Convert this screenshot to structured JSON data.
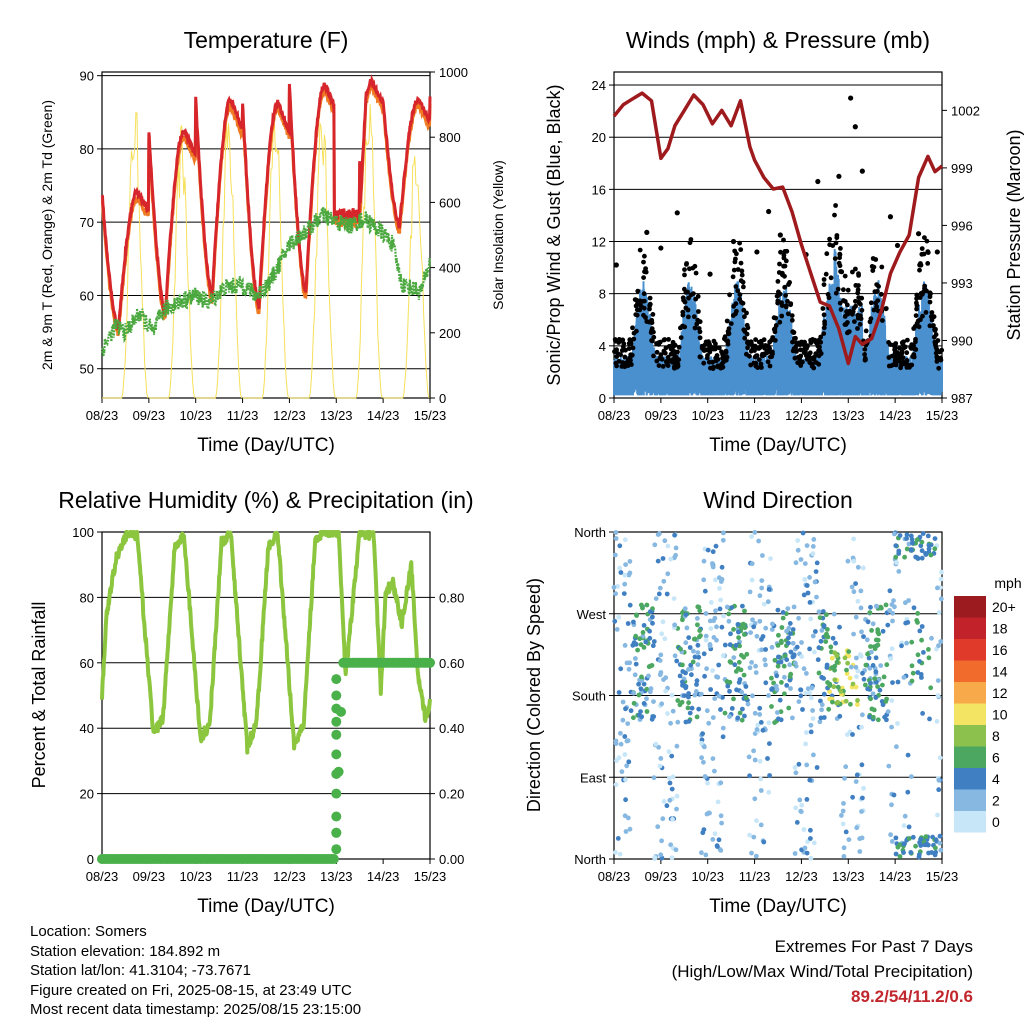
{
  "x_ticks": [
    "08/23",
    "09/23",
    "10/23",
    "11/23",
    "12/23",
    "13/23",
    "14/23",
    "15/23"
  ],
  "chart_data": [
    {
      "type": "line",
      "title": "Temperature (F)",
      "xlabel": "Time (Day/UTC)",
      "ylabel": "2m & 9m T (Red, Orange) & 2m Td (Green)",
      "y2label": "Solar Insolation (Yellow)",
      "ylim": [
        46,
        90.5
      ],
      "y_ticks": [
        50,
        60,
        70,
        80,
        90
      ],
      "y2lim": [
        0,
        1000
      ],
      "y2_ticks": [
        0,
        200,
        400,
        600,
        800,
        1000
      ],
      "grid": true,
      "days": [
        0,
        1,
        2,
        3,
        4,
        5,
        6,
        7
      ],
      "daily_high_temp": [
        74,
        82.5,
        86.8,
        86.3,
        88.8,
        89.2,
        86.8,
        87
      ],
      "daily_low_temp": [
        55.5,
        57.5,
        60,
        58.5,
        60.5,
        65.5,
        69.5,
        66.5
      ],
      "dewpoint_series": {
        "x": [
          0,
          0.3,
          0.5,
          0.8,
          1.1,
          1.3,
          1.6,
          2.0,
          2.3,
          2.6,
          3.0,
          3.3,
          3.6,
          4.0,
          4.4,
          4.7,
          5.0,
          5.3,
          5.6,
          6.0,
          6.2,
          6.4,
          6.8,
          7.0
        ],
        "values": [
          52.5,
          56,
          55,
          57.5,
          55,
          58,
          59,
          60,
          59,
          61,
          61.5,
          60,
          62,
          67,
          69,
          71,
          70,
          69.5,
          70.5,
          68.5,
          67,
          61.5,
          60.5,
          64.5
        ]
      },
      "daily_peak_insolation": [
        940,
        860,
        930,
        940,
        920,
        960,
        850,
        960
      ]
    },
    {
      "type": "scatter",
      "title": "Winds (mph) & Pressure (mb)",
      "xlabel": "Time (Day/UTC)",
      "ylabel": "Sonic/Prop Wind & Gust (Blue, Black)",
      "y2label": "Station Pressure (Maroon)",
      "ylim": [
        0,
        25
      ],
      "y_ticks": [
        0,
        4,
        8,
        12,
        16,
        20,
        24
      ],
      "y2lim": [
        987,
        1004
      ],
      "y2_ticks": [
        987,
        990,
        993,
        996,
        999,
        1002
      ],
      "grid": true,
      "gust_events": [
        {
          "x": 0.05,
          "y": 10.2
        },
        {
          "x": 0.7,
          "y": 12.7
        },
        {
          "x": 1.0,
          "y": 11.5
        },
        {
          "x": 1.35,
          "y": 14.2
        },
        {
          "x": 2.05,
          "y": 9.5
        },
        {
          "x": 2.55,
          "y": 12.0
        },
        {
          "x": 3.05,
          "y": 11.2
        },
        {
          "x": 3.3,
          "y": 14.3
        },
        {
          "x": 3.55,
          "y": 12.5
        },
        {
          "x": 4.1,
          "y": 11.0
        },
        {
          "x": 4.35,
          "y": 16.6
        },
        {
          "x": 4.8,
          "y": 17.0
        },
        {
          "x": 5.05,
          "y": 23.0
        },
        {
          "x": 5.15,
          "y": 20.8
        },
        {
          "x": 5.3,
          "y": 17.4
        },
        {
          "x": 5.9,
          "y": 13.9
        },
        {
          "x": 6.05,
          "y": 11.7
        },
        {
          "x": 6.5,
          "y": 12.6
        },
        {
          "x": 6.9,
          "y": 11.2
        },
        {
          "x": 6.75,
          "y": 8.0
        }
      ],
      "pressure_series": {
        "x": [
          0,
          0.2,
          0.4,
          0.6,
          0.8,
          1.0,
          1.15,
          1.3,
          1.5,
          1.7,
          1.9,
          2.1,
          2.3,
          2.5,
          2.7,
          2.9,
          3.0,
          3.2,
          3.4,
          3.6,
          3.8,
          4.0,
          4.2,
          4.4,
          4.6,
          4.8,
          5.0,
          5.15,
          5.3,
          5.5,
          5.7,
          5.9,
          6.1,
          6.3,
          6.5,
          6.7,
          6.85,
          7.0
        ],
        "values": [
          1001.7,
          1002.3,
          1002.6,
          1002.9,
          1002.5,
          999.5,
          1000.0,
          1001.2,
          1002.0,
          1002.8,
          1002.3,
          1001.3,
          1002.0,
          1001.2,
          1002.5,
          1000.1,
          999.4,
          998.5,
          997.9,
          998.0,
          996.7,
          995.0,
          993.5,
          992.0,
          991.8,
          990.6,
          988.8,
          990.2,
          989.8,
          990.1,
          991.5,
          993.5,
          994.6,
          995.5,
          998.5,
          999.6,
          998.8,
          999.1
        ]
      }
    },
    {
      "type": "line",
      "title": "Relative Humidity (%) & Precipitation (in)",
      "xlabel": "Time (Day/UTC)",
      "ylabel": "Percent & Total Rainfall",
      "ylim": [
        0,
        100
      ],
      "y_ticks": [
        0,
        20,
        40,
        60,
        80,
        100
      ],
      "y2_ticks": [
        "0.00",
        "0.20",
        "0.40",
        "0.60",
        "0.80"
      ],
      "grid": true,
      "rh_series": {
        "x": [
          0,
          0.1,
          0.3,
          0.55,
          0.75,
          1.1,
          1.3,
          1.55,
          1.75,
          2.1,
          2.3,
          2.55,
          2.75,
          3.1,
          3.3,
          3.55,
          3.75,
          4.1,
          4.3,
          4.55,
          4.75,
          5.05,
          5.2,
          5.5,
          5.8,
          5.95,
          6.05,
          6.2,
          6.4,
          6.6,
          6.75,
          6.9,
          7.0
        ],
        "values": [
          50,
          75,
          92,
          100,
          99,
          38,
          43,
          95,
          99,
          37,
          41,
          97,
          99,
          34,
          42,
          96,
          99,
          35,
          41,
          98,
          100,
          100,
          56,
          100,
          99,
          51,
          81,
          85,
          72,
          90,
          55,
          43,
          48
        ]
      },
      "precip_series": {
        "x": [
          0,
          0.5,
          1.0,
          1.5,
          2.0,
          2.5,
          3.0,
          3.5,
          4.0,
          4.5,
          4.95,
          5.0,
          5.03,
          5.06,
          5.1,
          5.15,
          5.5,
          6.0,
          6.5,
          7.0
        ],
        "values": [
          0,
          0,
          0,
          0,
          0,
          0,
          0,
          0,
          0,
          0,
          0,
          0.08,
          0.2,
          0.3,
          0.45,
          0.6,
          0.6,
          0.6,
          0.6,
          0.6
        ]
      }
    },
    {
      "type": "scatter",
      "title": "Wind Direction",
      "xlabel": "Time (Day/UTC)",
      "ylabel": "Direction (Colored By Speed)",
      "y_categories": [
        "North",
        "East",
        "South",
        "West",
        "North"
      ],
      "grid": true,
      "legend": {
        "title": "mph",
        "labels": [
          "20+",
          "18",
          "16",
          "14",
          "12",
          "10",
          "8",
          "6",
          "4",
          "2",
          "0"
        ],
        "colors": [
          "#9b1b1e",
          "#c2232a",
          "#e03a2b",
          "#f06b2c",
          "#f8a94a",
          "#f4e463",
          "#8cc14d",
          "#4ca860",
          "#3f7fc2",
          "#86b8e1",
          "#c7e6f8"
        ]
      }
    }
  ],
  "info": {
    "location": "Location: Somers",
    "elevation": "Station elevation: 184.892 m",
    "latlon": "Station lat/lon: 41.3104; -73.7671",
    "created": "Figure created on Fri, 2025-08-15, at 23:49 UTC",
    "latest": "Most recent data timestamp: 2025/08/15 23:15:00"
  },
  "extremes": {
    "title": "Extremes For Past 7 Days",
    "subtitle": "(High/Low/Max Wind/Total Precipitation)",
    "values": "89.2/54/11.2/0.6"
  }
}
